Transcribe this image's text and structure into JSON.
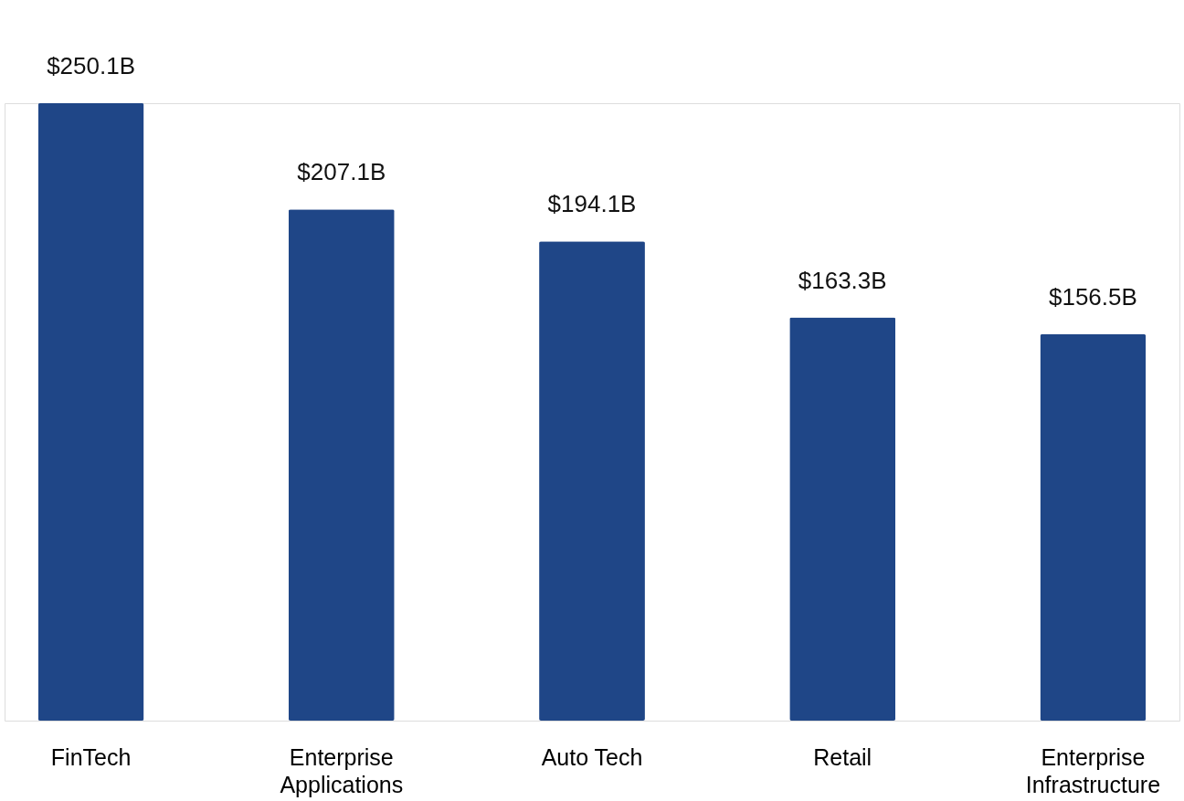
{
  "chart_data": {
    "type": "bar",
    "categories": [
      "FinTech",
      "Enterprise Applications",
      "Auto Tech",
      "Retail",
      "Enterprise Infrastructure"
    ],
    "values": [
      250.1,
      207.1,
      194.1,
      163.3,
      156.5
    ],
    "value_labels": [
      "$250.1B",
      "$207.1B",
      "$194.1B",
      "$163.3B",
      "$156.5B"
    ],
    "color": "#1f4687",
    "grid": false,
    "legend": false
  }
}
